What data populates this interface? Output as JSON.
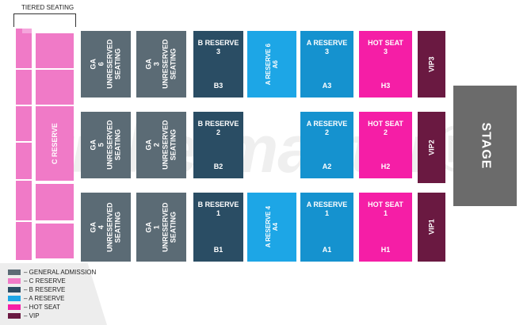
{
  "watermark": "ticketmaster®",
  "tiered_seating_label": "TIERED SEATING",
  "stage_label": "STAGE",
  "c_reserve_label": "C RESERVE",
  "blocks": {
    "ga6": [
      "GA",
      "6",
      "UNRESERVED",
      "SEATING"
    ],
    "ga3": [
      "GA",
      "3",
      "UNRESERVED",
      "SEATING"
    ],
    "ga5": [
      "GA",
      "5",
      "UNRESERVED",
      "SEATING"
    ],
    "ga2": [
      "GA",
      "2",
      "UNRESERVED",
      "SEATING"
    ],
    "ga4": [
      "GA",
      "4",
      "UNRESERVED",
      "SEATING"
    ],
    "ga1": [
      "GA",
      "1",
      "UNRESERVED",
      "SEATING"
    ],
    "b3": {
      "name": "B RESERVE",
      "num": "3",
      "code": "B3"
    },
    "b2": {
      "name": "B RESERVE",
      "num": "2",
      "code": "B2"
    },
    "b1": {
      "name": "B RESERVE",
      "num": "1",
      "code": "B1"
    },
    "a6": {
      "name": "A RESERVE 6",
      "code": "A6"
    },
    "a4": {
      "name": "A RESERVE 4",
      "code": "A4"
    },
    "a3": {
      "name": "A RESERVE",
      "num": "3",
      "code": "A3"
    },
    "a2": {
      "name": "A RESERVE",
      "num": "2",
      "code": "A2"
    },
    "a1": {
      "name": "A RESERVE",
      "num": "1",
      "code": "A1"
    },
    "h3": {
      "name": "HOT SEAT",
      "num": "3",
      "code": "H3"
    },
    "h2": {
      "name": "HOT SEAT",
      "num": "2",
      "code": "H2"
    },
    "h1": {
      "name": "HOT SEAT",
      "num": "1",
      "code": "H1"
    },
    "vip3": "VIP3",
    "vip2": "VIP2",
    "vip1": "VIP1"
  },
  "legend": [
    {
      "label": "– GENERAL ADMISSION",
      "color": "#5b6b75"
    },
    {
      "label": "– C RESERVE",
      "color": "#f07ac7"
    },
    {
      "label": "– B RESERVE",
      "color": "#2a4d64"
    },
    {
      "label": "– A RESERVE",
      "color": "#1da6e6"
    },
    {
      "label": "– HOT SEAT",
      "color": "#f51ea6"
    },
    {
      "label": "– VIP",
      "color": "#6a1941"
    }
  ]
}
